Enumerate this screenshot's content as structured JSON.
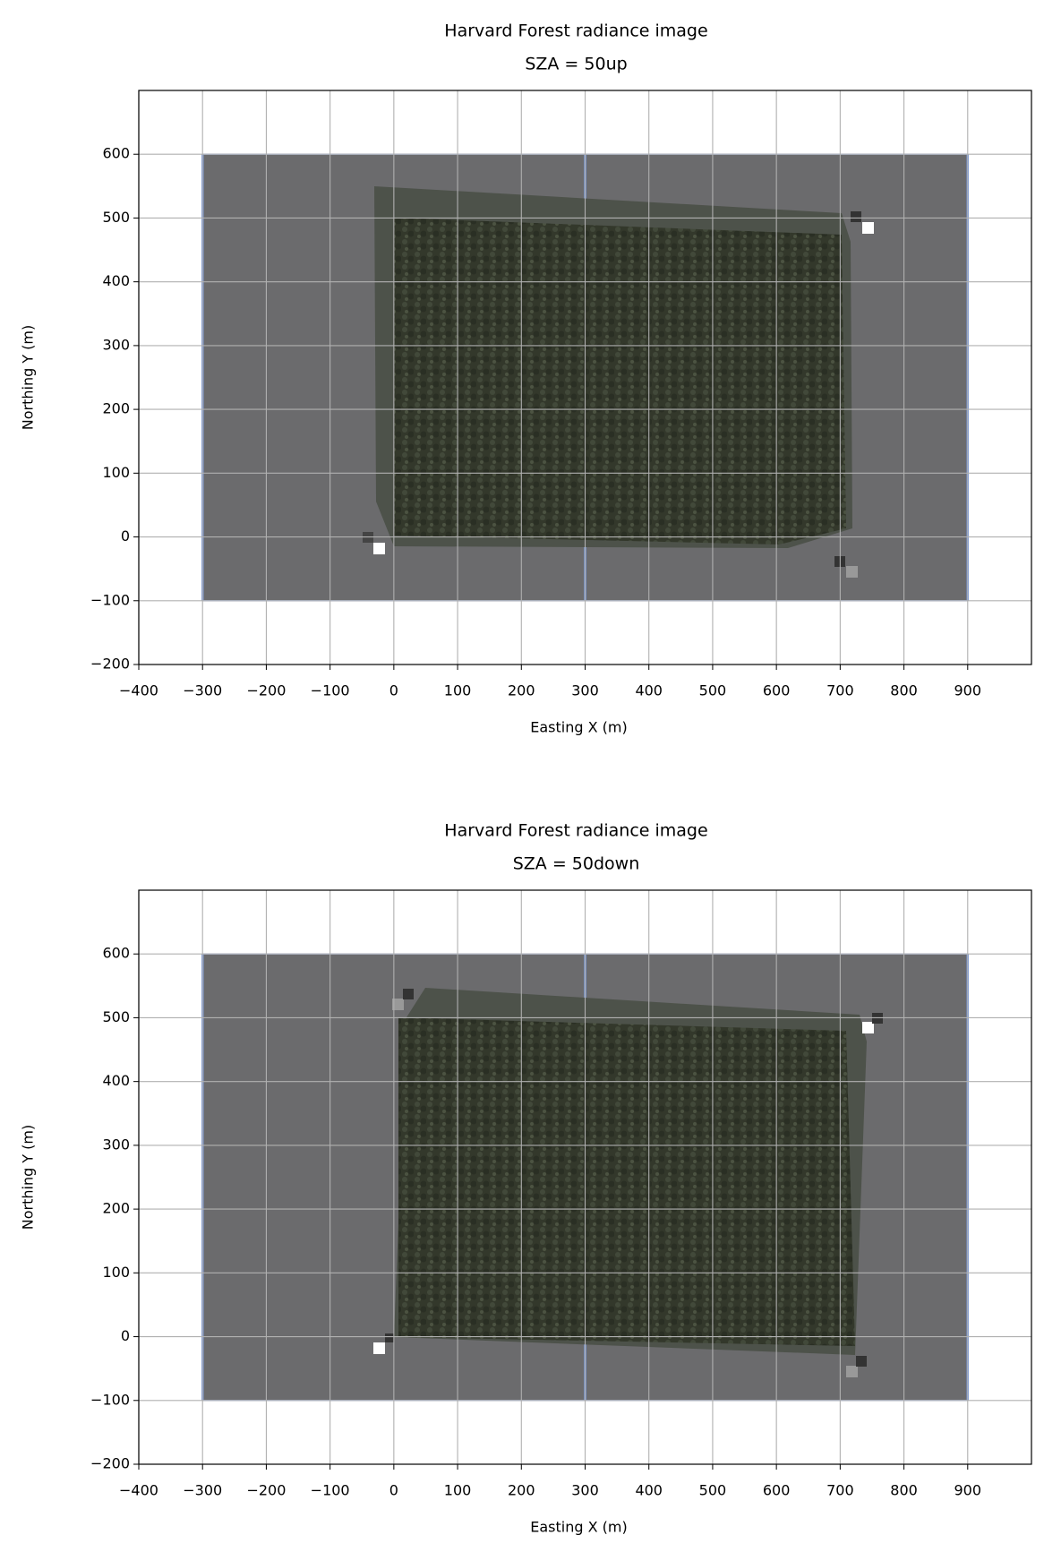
{
  "chart_data": [
    {
      "type": "image",
      "title": "Harvard Forest radiance image",
      "subtitle": "SZA = 50up",
      "xlabel": "Easting X (m)",
      "ylabel": "Northing Y (m)",
      "xlim": [
        -400,
        1000
      ],
      "ylim": [
        -200,
        700
      ],
      "xticks": [
        {
          "value": -400,
          "label": "−400"
        },
        {
          "value": -300,
          "label": "−300"
        },
        {
          "value": -200,
          "label": "−200"
        },
        {
          "value": -100,
          "label": "−100"
        },
        0,
        100,
        200,
        300,
        400,
        500,
        600,
        700,
        800,
        900
      ],
      "yticks": [
        {
          "value": -200,
          "label": "−200"
        },
        {
          "value": -100,
          "label": "−100"
        },
        0,
        100,
        200,
        300,
        400,
        500,
        600
      ],
      "image_extent": [
        -300,
        900,
        -100,
        600
      ],
      "grid": true
    },
    {
      "type": "image",
      "title": "Harvard Forest radiance image",
      "subtitle": "SZA = 50down",
      "xlabel": "Easting X (m)",
      "ylabel": "Northing Y (m)",
      "xlim": [
        -400,
        1000
      ],
      "ylim": [
        -200,
        700
      ],
      "xticks": [
        {
          "value": -400,
          "label": "−400"
        },
        {
          "value": -300,
          "label": "−300"
        },
        {
          "value": -200,
          "label": "−200"
        },
        {
          "value": -100,
          "label": "−100"
        },
        0,
        100,
        200,
        300,
        400,
        500,
        600,
        700,
        800,
        900
      ],
      "yticks": [
        {
          "value": -200,
          "label": "−200"
        },
        {
          "value": -100,
          "label": "−100"
        },
        0,
        100,
        200,
        300,
        400,
        500,
        600
      ],
      "image_extent": [
        -300,
        900,
        -100,
        600
      ],
      "grid": true
    }
  ]
}
